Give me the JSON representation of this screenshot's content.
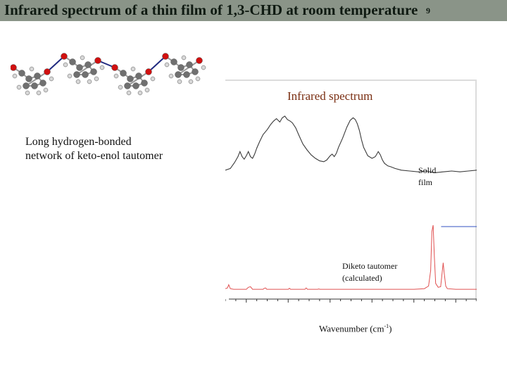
{
  "slide": {
    "title": "Infrared spectrum of a thin film of 1,3-CHD at room temperature",
    "slide_number": "9",
    "caption_line1": "Long hydrogen-bonded",
    "caption_line2": "network of keto-enol tautomer"
  },
  "colors": {
    "title_bar": "#8a9488",
    "chart_title": "#7a2e12",
    "solid_film_trace": "#3a3a3a",
    "diketo_trace": "#e05050",
    "blue_segment": "#3050c0",
    "oxygen_atom": "#d01010",
    "carbon_atom": "#707070",
    "hydrogen_atom": "#d8d8d8",
    "hbond": "#202a80"
  },
  "chart_data": {
    "type": "line",
    "title": "Infrared spectrum",
    "xlabel_main": "Wavenumber (cm",
    "xlabel_sup": "-1",
    "xlabel_end": ")",
    "xlim": [
      1250,
      1850
    ],
    "xticks": [
      1300,
      1400,
      1500,
      1600,
      1700,
      1800
    ],
    "series": [
      {
        "name": "Solid film",
        "label_line1": "Solid",
        "label_line2": "film",
        "x": [
          1250,
          1262,
          1272,
          1280,
          1285,
          1290,
          1295,
          1300,
          1305,
          1310,
          1315,
          1320,
          1325,
          1332,
          1340,
          1350,
          1358,
          1365,
          1372,
          1380,
          1386,
          1392,
          1398,
          1405,
          1410,
          1418,
          1425,
          1435,
          1445,
          1455,
          1465,
          1475,
          1485,
          1492,
          1500,
          1505,
          1510,
          1515,
          1520,
          1530,
          1540,
          1548,
          1555,
          1560,
          1565,
          1570,
          1575,
          1580,
          1590,
          1600,
          1608,
          1615,
          1620,
          1625,
          1630,
          1638,
          1645,
          1655,
          1670,
          1690,
          1710,
          1730,
          1750,
          1770,
          1790,
          1810,
          1830,
          1850
        ],
        "y": [
          0.36,
          0.38,
          0.45,
          0.52,
          0.58,
          0.52,
          0.49,
          0.53,
          0.58,
          0.52,
          0.5,
          0.55,
          0.62,
          0.7,
          0.78,
          0.84,
          0.9,
          0.94,
          0.97,
          0.93,
          0.98,
          1.0,
          0.96,
          0.94,
          0.92,
          0.86,
          0.78,
          0.67,
          0.6,
          0.54,
          0.5,
          0.47,
          0.46,
          0.48,
          0.53,
          0.55,
          0.52,
          0.56,
          0.63,
          0.74,
          0.87,
          0.95,
          0.98,
          0.96,
          0.91,
          0.83,
          0.72,
          0.63,
          0.53,
          0.5,
          0.52,
          0.58,
          0.54,
          0.48,
          0.44,
          0.41,
          0.4,
          0.38,
          0.36,
          0.35,
          0.34,
          0.35,
          0.33,
          0.34,
          0.35,
          0.34,
          0.35,
          0.36
        ]
      },
      {
        "name": "Diketo tautomer (calculated)",
        "label_line1": "Diketo tautomer",
        "label_line2": "(calculated)",
        "x": [
          1250,
          1255,
          1258,
          1262,
          1270,
          1300,
          1305,
          1310,
          1315,
          1340,
          1343,
          1346,
          1349,
          1390,
          1400,
          1403,
          1406,
          1425,
          1440,
          1443,
          1446,
          1470,
          1473,
          1476,
          1500,
          1600,
          1700,
          1725,
          1735,
          1740,
          1743,
          1746,
          1749,
          1752,
          1758,
          1764,
          1768,
          1770,
          1772,
          1776,
          1780,
          1800,
          1850
        ],
        "y": [
          0.02,
          0.03,
          0.08,
          0.02,
          0.01,
          0.01,
          0.04,
          0.05,
          0.01,
          0.01,
          0.025,
          0.03,
          0.01,
          0.01,
          0.01,
          0.025,
          0.01,
          0.01,
          0.01,
          0.03,
          0.01,
          0.01,
          0.015,
          0.01,
          0.01,
          0.01,
          0.01,
          0.02,
          0.06,
          0.3,
          0.9,
          1.0,
          0.5,
          0.1,
          0.04,
          0.05,
          0.3,
          0.42,
          0.28,
          0.06,
          0.02,
          0.01,
          0.01
        ]
      }
    ]
  }
}
